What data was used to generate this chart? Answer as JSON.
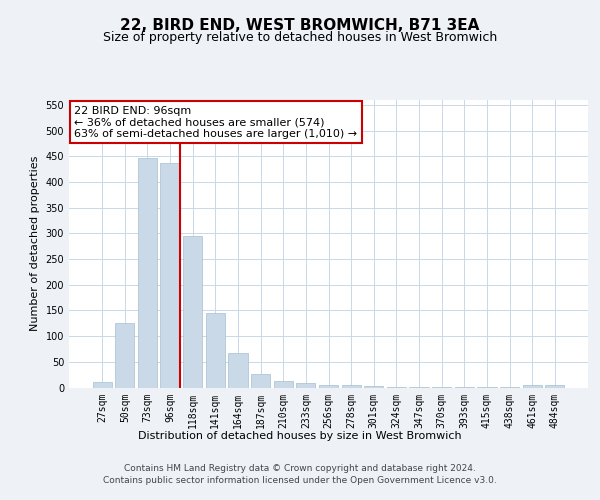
{
  "title": "22, BIRD END, WEST BROMWICH, B71 3EA",
  "subtitle": "Size of property relative to detached houses in West Bromwich",
  "xlabel": "Distribution of detached houses by size in West Bromwich",
  "ylabel": "Number of detached properties",
  "footer_line1": "Contains HM Land Registry data © Crown copyright and database right 2024.",
  "footer_line2": "Contains public sector information licensed under the Open Government Licence v3.0.",
  "bar_labels": [
    "27sqm",
    "50sqm",
    "73sqm",
    "96sqm",
    "118sqm",
    "141sqm",
    "164sqm",
    "187sqm",
    "210sqm",
    "233sqm",
    "256sqm",
    "278sqm",
    "301sqm",
    "324sqm",
    "347sqm",
    "370sqm",
    "393sqm",
    "415sqm",
    "438sqm",
    "461sqm",
    "484sqm"
  ],
  "bar_values": [
    11,
    125,
    447,
    437,
    296,
    146,
    68,
    27,
    13,
    8,
    5,
    4,
    2,
    1,
    1,
    1,
    1,
    1,
    1,
    5,
    5
  ],
  "bar_color": "#c9d9e8",
  "bar_edge_color": "#a8bfd0",
  "grid_color": "#c8d8e8",
  "annotation_text": "22 BIRD END: 96sqm\n← 36% of detached houses are smaller (574)\n63% of semi-detached houses are larger (1,010) →",
  "annotation_box_color": "#ffffff",
  "annotation_border_color": "#cc0000",
  "vline_index": 3,
  "vline_color": "#cc0000",
  "ylim_max": 560,
  "yticks": [
    0,
    50,
    100,
    150,
    200,
    250,
    300,
    350,
    400,
    450,
    500,
    550
  ],
  "background_color": "#eef2f7",
  "plot_bg_color": "#ffffff",
  "title_fontsize": 11,
  "subtitle_fontsize": 9,
  "axis_label_fontsize": 8,
  "tick_fontsize": 7,
  "annotation_fontsize": 8,
  "footer_fontsize": 6.5
}
